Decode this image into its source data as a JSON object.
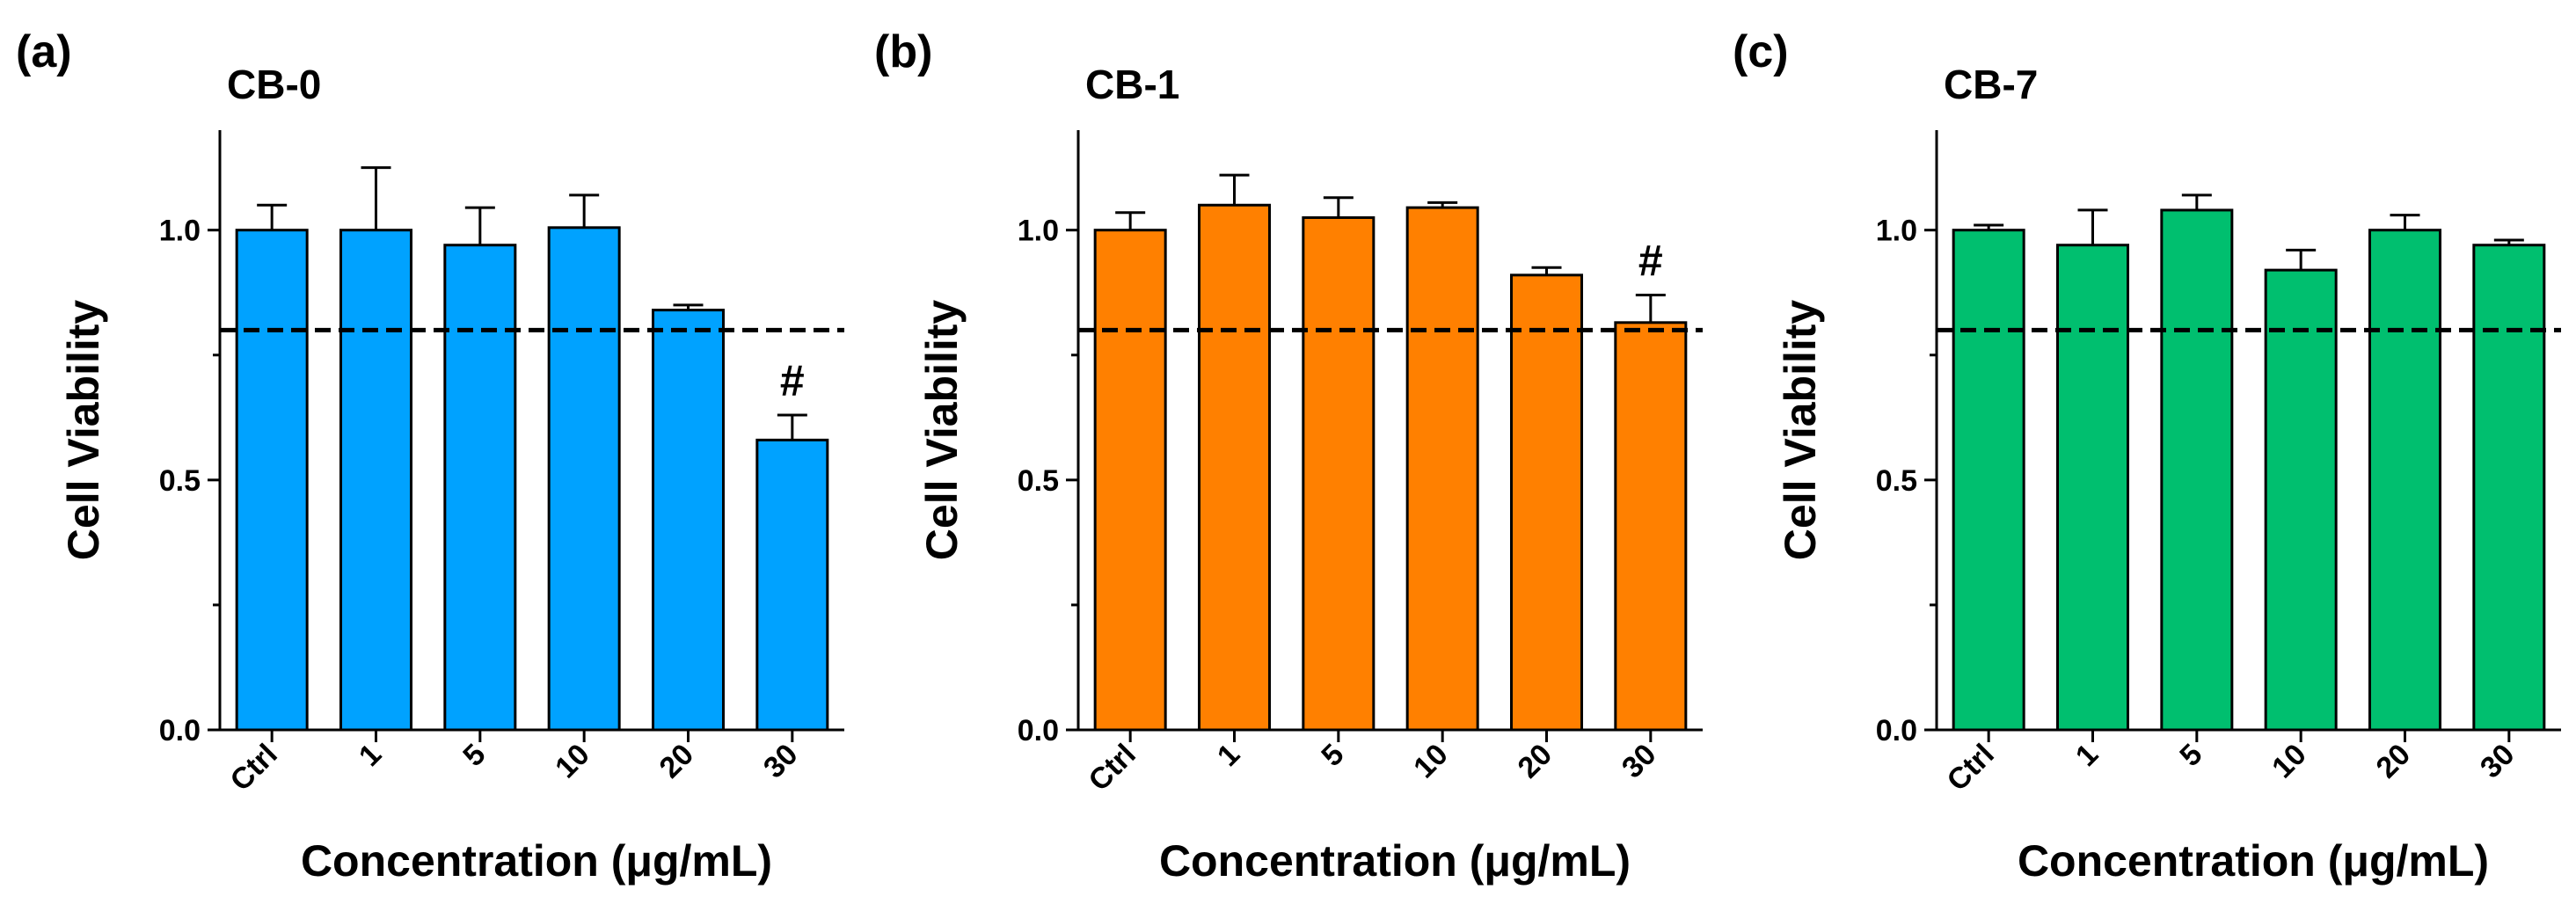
{
  "chart_data": [
    {
      "type": "bar",
      "panel_label": "(a)",
      "title": "CB-0",
      "color": "#00A2FF",
      "categories": [
        "Ctrl",
        "1",
        "5",
        "10",
        "20",
        "30"
      ],
      "values": [
        1.0,
        1.0,
        0.97,
        1.005,
        0.84,
        0.58
      ],
      "errors": [
        0.05,
        0.125,
        0.075,
        0.065,
        0.01,
        0.05
      ],
      "annotations": [
        {
          "category": "30",
          "text": "#"
        }
      ],
      "reference_line": 0.8,
      "ylim": [
        0,
        1.2
      ],
      "yticks": [
        "0.0",
        "0.5",
        "1.0"
      ],
      "xlabel": "Concentration (μg/mL)",
      "ylabel": "Cell Viability"
    },
    {
      "type": "bar",
      "panel_label": "(b)",
      "title": "CB-1",
      "color": "#FF8000",
      "categories": [
        "Ctrl",
        "1",
        "5",
        "10",
        "20",
        "30"
      ],
      "values": [
        1.0,
        1.05,
        1.025,
        1.045,
        0.91,
        0.815
      ],
      "errors": [
        0.035,
        0.06,
        0.04,
        0.01,
        0.015,
        0.055
      ],
      "annotations": [
        {
          "category": "30",
          "text": "#"
        }
      ],
      "reference_line": 0.8,
      "ylim": [
        0,
        1.2
      ],
      "yticks": [
        "0.0",
        "0.5",
        "1.0"
      ],
      "xlabel": "Concentration (μg/mL)",
      "ylabel": "Cell Viability"
    },
    {
      "type": "bar",
      "panel_label": "(c)",
      "title": "CB-7",
      "color": "#00BF6F",
      "categories": [
        "Ctrl",
        "1",
        "5",
        "10",
        "20",
        "30"
      ],
      "values": [
        1.0,
        0.97,
        1.04,
        0.92,
        1.0,
        0.97
      ],
      "errors": [
        0.01,
        0.07,
        0.03,
        0.04,
        0.03,
        0.01
      ],
      "annotations": [],
      "reference_line": 0.8,
      "ylim": [
        0,
        1.2
      ],
      "yticks": [
        "0.0",
        "0.5",
        "1.0"
      ],
      "xlabel": "Concentration (μg/mL)",
      "ylabel": "Cell Viability"
    }
  ]
}
